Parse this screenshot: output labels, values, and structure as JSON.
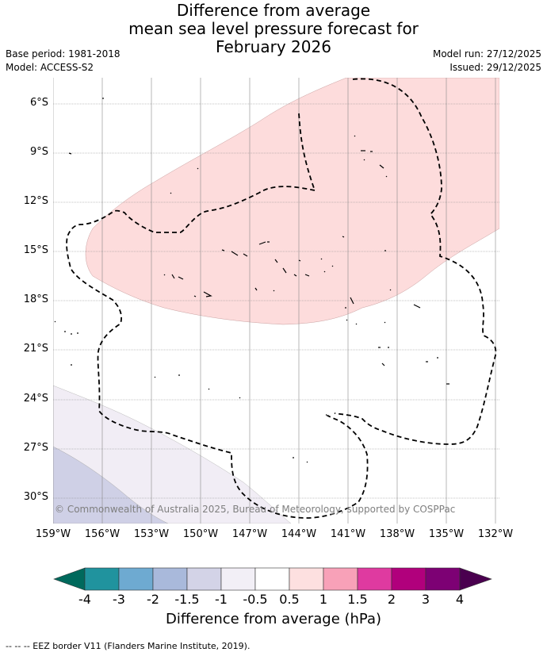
{
  "title": {
    "line1": "Difference from average",
    "line2": "mean sea level pressure forecast for",
    "line3": "February 2026"
  },
  "meta_left": {
    "base_period": "Base period: 1981-2018",
    "model": "Model: ACCESS-S2"
  },
  "meta_right": {
    "model_run": "Model run: 27/12/2025",
    "issued": "Issued: 29/12/2025"
  },
  "map": {
    "lat_labels": [
      "6°S",
      "9°S",
      "12°S",
      "15°S",
      "18°S",
      "21°S",
      "24°S",
      "27°S",
      "30°S"
    ],
    "lon_labels": [
      "159°W",
      "156°W",
      "153°W",
      "150°W",
      "147°W",
      "144°W",
      "141°W",
      "138°W",
      "135°W",
      "132°W"
    ],
    "copyright": "© Commonwealth of Australia 2025, Bureau of Meteorology, supported by COSPPac",
    "colors": {
      "positive_fill": "#fddcdc",
      "negative_light_fill": "#f1edf5",
      "negative_fill": "#cfd0e6",
      "eez_line": "#000000",
      "gridline": "#888888"
    }
  },
  "colorbar": {
    "title": "Difference from average (hPa)",
    "ticks": [
      "-4",
      "-3",
      "-2",
      "-1.5",
      "-1",
      "-0.5",
      "0.5",
      "1",
      "1.5",
      "2",
      "3",
      "4"
    ],
    "colors": [
      "#00695c",
      "#20939e",
      "#6eaad1",
      "#a9b9db",
      "#d3d3e7",
      "#f2eff6",
      "#ffffff",
      "#fde0e0",
      "#f8a1b8",
      "#df3aa0",
      "#b1007c",
      "#7d0174",
      "#4a004f"
    ]
  },
  "footer": {
    "legend": "-- -- -- EEZ border V11 (Flanders Marine Institute, 2019)."
  }
}
